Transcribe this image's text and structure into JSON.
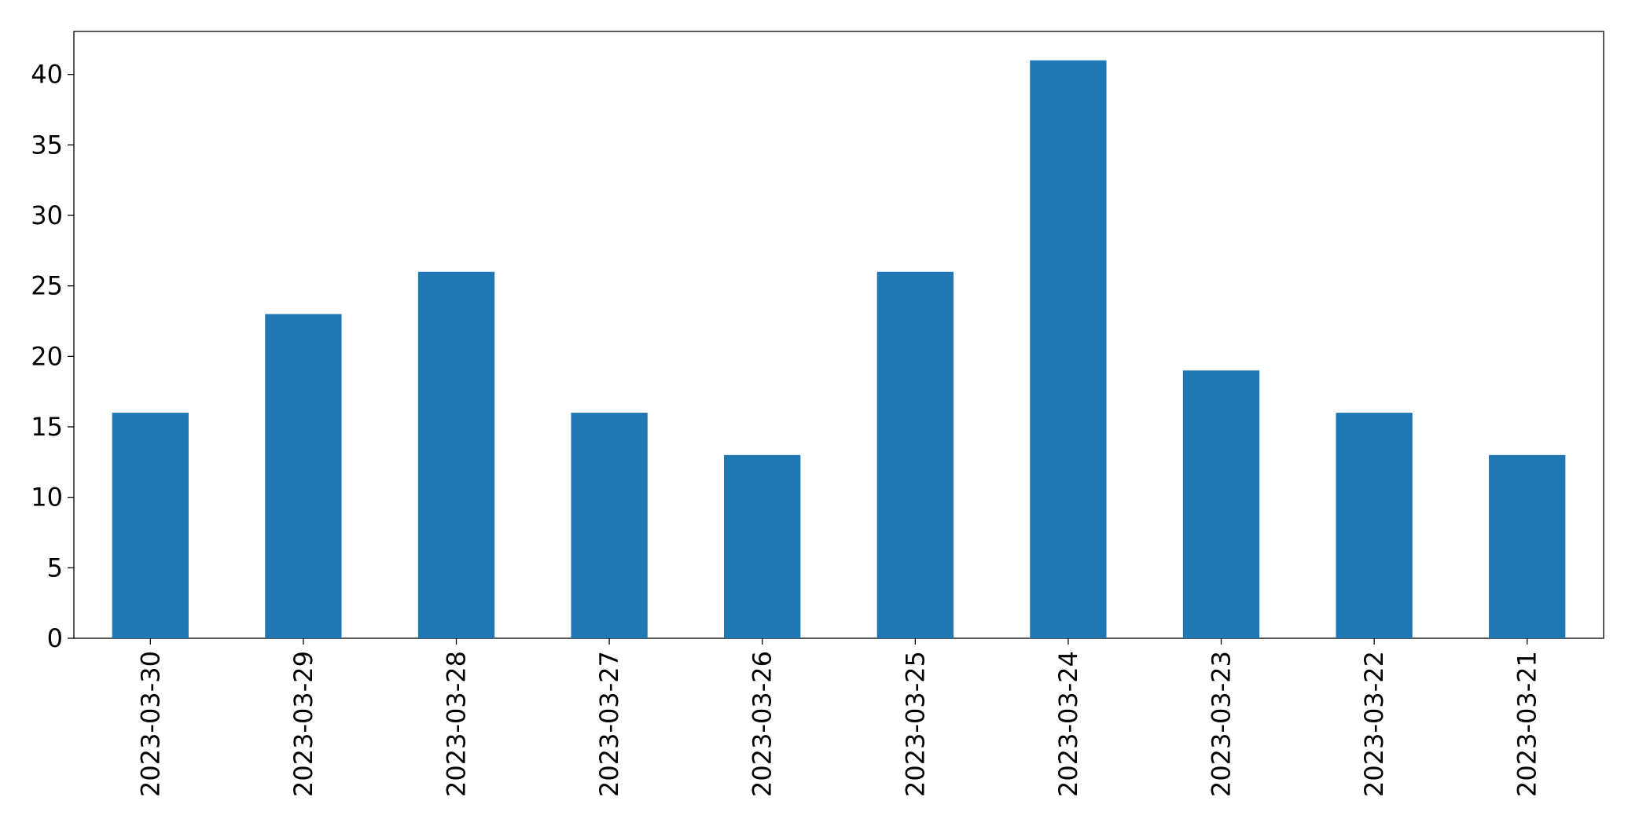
{
  "chart_data": {
    "type": "bar",
    "categories": [
      "2023-03-30",
      "2023-03-29",
      "2023-03-28",
      "2023-03-27",
      "2023-03-26",
      "2023-03-25",
      "2023-03-24",
      "2023-03-23",
      "2023-03-22",
      "2023-03-21"
    ],
    "values": [
      16,
      23,
      26,
      16,
      13,
      26,
      41,
      19,
      16,
      13
    ],
    "color": "#1f77b4",
    "ylim": [
      0,
      43.05
    ],
    "yticks": [
      0,
      5,
      10,
      15,
      20,
      25,
      30,
      35,
      40
    ],
    "grid": false
  }
}
